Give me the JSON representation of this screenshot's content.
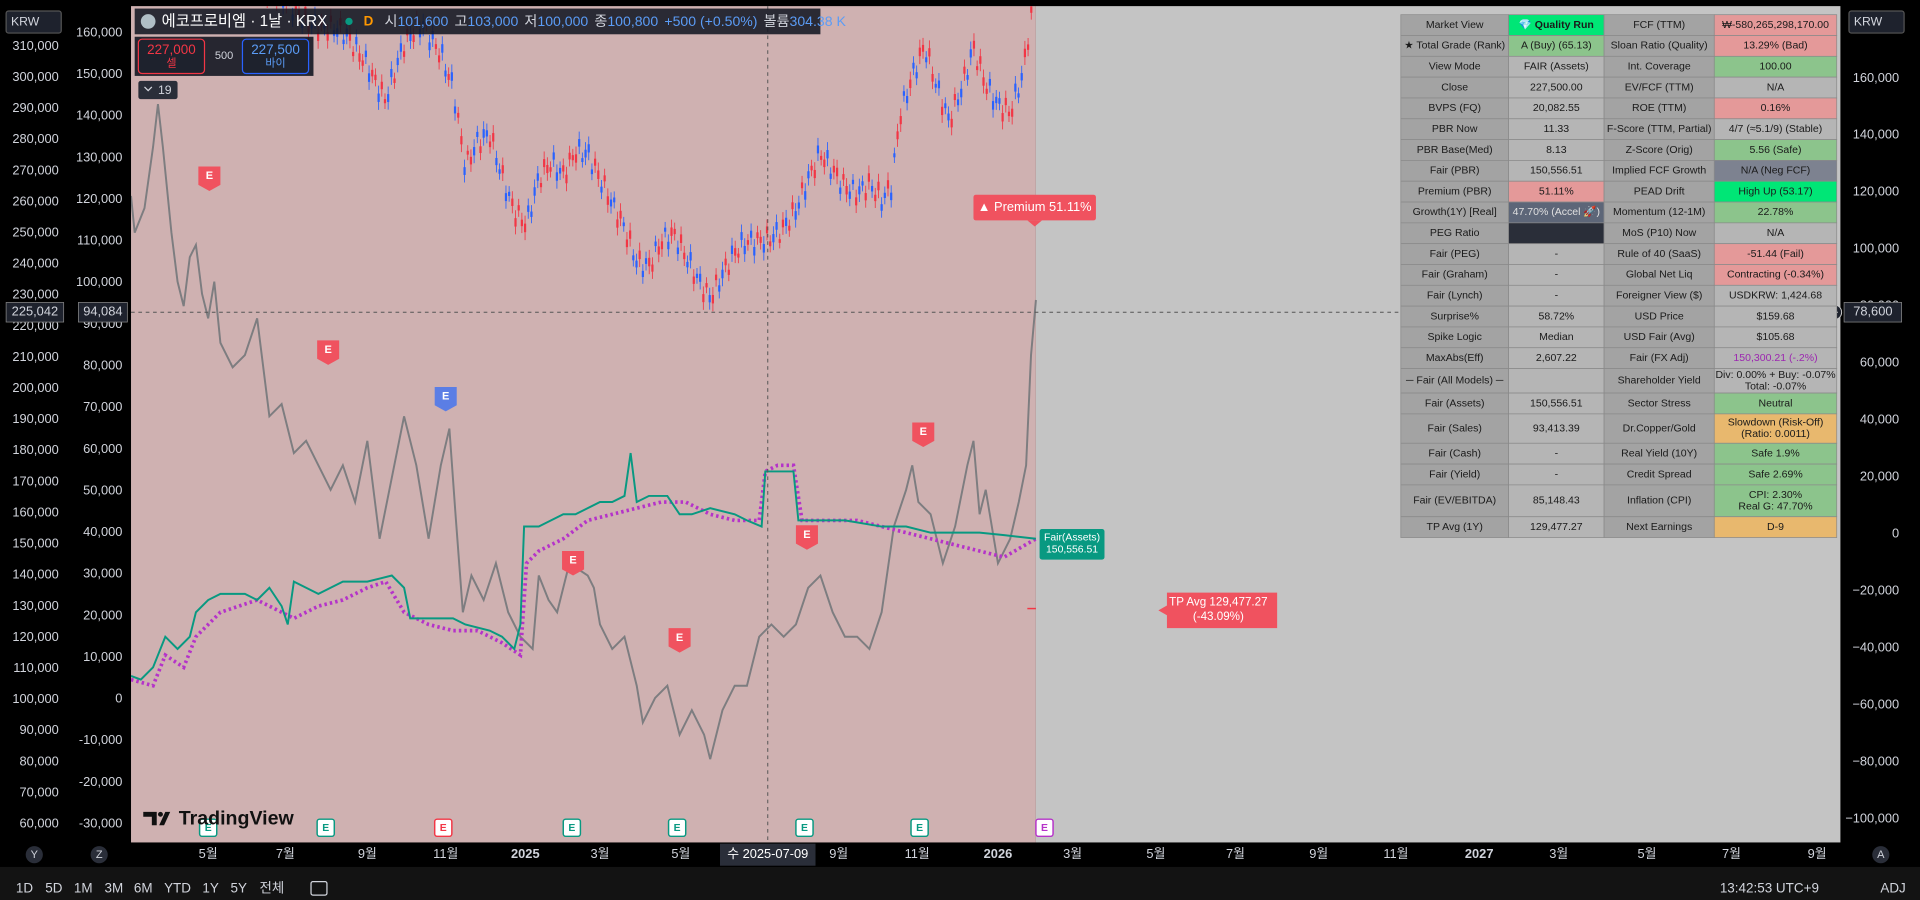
{
  "header": {
    "currency_left": "KRW",
    "currency_right": "KRW",
    "title": "에코프로비엠 · 1날 · KRX",
    "interval": "D",
    "ohlc": [
      {
        "label": "시",
        "value": "101,600"
      },
      {
        "label": "고",
        "value": "103,000"
      },
      {
        "label": "저",
        "value": "100,000"
      },
      {
        "label": "종",
        "value": "100,800"
      }
    ],
    "change": "+500 (+0.50%)",
    "volume_label": "볼륨",
    "volume": "304.38 K"
  },
  "order": {
    "sell_price": "227,000",
    "sell_label": "셀",
    "spread": "500",
    "buy_price": "227,500",
    "buy_label": "바이"
  },
  "indicator_count": "19",
  "axes": {
    "left_outer": [
      "310,000",
      "300,000",
      "290,000",
      "280,000",
      "270,000",
      "260,000",
      "250,000",
      "240,000",
      "230,000",
      "220,000",
      "210,000",
      "200,000",
      "190,000",
      "180,000",
      "170,000",
      "160,000",
      "150,000",
      "140,000",
      "130,000",
      "120,000",
      "110,000",
      "100,000",
      "90,000",
      "80,000",
      "70,000",
      "60,000"
    ],
    "left_inner": [
      "160,000",
      "150,000",
      "140,000",
      "130,000",
      "120,000",
      "110,000",
      "100,000",
      "90,000",
      "80,000",
      "70,000",
      "60,000",
      "50,000",
      "40,000",
      "30,000",
      "20,000",
      "10,000",
      "0",
      "-10,000",
      "-20,000",
      "-30,000"
    ],
    "right": [
      "160,000",
      "140,000",
      "120,000",
      "100,000",
      "80,000",
      "60,000",
      "40,000",
      "20,000",
      "0",
      "−20,000",
      "−40,000",
      "−60,000",
      "−80,000",
      "−100,000"
    ],
    "time": [
      "5월",
      "7월",
      "9월",
      "11월",
      "2025",
      "3월",
      "5월",
      "9월",
      "11월",
      "2026",
      "3월",
      "5월",
      "7월",
      "9월",
      "11월",
      "2027",
      "3월",
      "5월",
      "7월",
      "9월"
    ]
  },
  "crosshair": {
    "left_outer": "225,042",
    "left_inner": "94,084",
    "right": "78,600",
    "date": "수 2025-07-09"
  },
  "annotations": {
    "premium": "▲ Premium 51.11%",
    "fair": [
      "Fair(Assets)",
      "150,556.51"
    ],
    "tp": [
      "TP Avg 129,477.27",
      "(-43.09%)"
    ]
  },
  "earnings_marker": "E",
  "logo": "TradingView",
  "table": {
    "rows": [
      [
        "Market View",
        "💎 Quality Run",
        "FCF (TTM)",
        "₩-580,265,298,170.00"
      ],
      [
        "★ Total Grade (Rank)",
        "A (Buy) (65.13)",
        "Sloan Ratio (Quality)",
        "13.29% (Bad)"
      ],
      [
        "View Mode",
        "FAIR (Assets)",
        "Int. Coverage",
        "100.00"
      ],
      [
        "Close",
        "227,500.00",
        "EV/FCF (TTM)",
        "N/A"
      ],
      [
        "BVPS (FQ)",
        "20,082.55",
        "ROE (TTM)",
        "0.16%"
      ],
      [
        "PBR Now",
        "11.33",
        "F-Score (TTM, Partial)",
        "4/7 (≈5.1/9) (Stable)"
      ],
      [
        "PBR Base(Med)",
        "8.13",
        "Z-Score (Orig)",
        "5.56 (Safe)"
      ],
      [
        "Fair (PBR)",
        "150,556.51",
        "Implied FCF Growth",
        "N/A (Neg FCF)"
      ],
      [
        "Premium (PBR)",
        "51.11%",
        "PEAD Drift",
        "High Up (53.17)"
      ],
      [
        "Growth(1Y) [Real]",
        "47.70% (Accel 🚀)",
        "Momentum (12-1M)",
        "22.78%"
      ],
      [
        "PEG Ratio",
        null,
        "MoS (P10) Now",
        "N/A"
      ],
      [
        "Fair (PEG)",
        "-",
        "Rule of 40 (SaaS)",
        "-51.44 (Fail)"
      ],
      [
        "Fair (Graham)",
        "-",
        "Global Net Liq",
        "Contracting (-0.34%)"
      ],
      [
        "Fair (Lynch)",
        "-",
        "Foreigner View ($)",
        "USDKRW: 1,424.68"
      ],
      [
        "Surprise%",
        "58.72%",
        "USD Price",
        "$159.68"
      ],
      [
        "Spike Logic",
        "Median",
        "USD Fair (Avg)",
        "$105.68"
      ],
      [
        "MaxAbs(Eff)",
        "2,607.22",
        "Fair (FX Adj)",
        "150,300.21 (-.2%)"
      ],
      [
        "─ Fair (All Models) ─",
        null,
        "Shareholder Yield",
        [
          "Div: 0.00% + Buy: -0.07%",
          "Total: -0.07%"
        ]
      ],
      [
        "Fair (Assets)",
        "150,556.51",
        "Sector Stress",
        "Neutral"
      ],
      [
        "Fair (Sales)",
        "93,413.39",
        "Dr.Copper/Gold",
        [
          "Slowdown (Risk-Off)",
          "(Ratio: 0.0011)"
        ]
      ],
      [
        "Fair (Cash)",
        "-",
        "Real Yield (10Y)",
        "Safe 1.9%"
      ],
      [
        "Fair (Yield)",
        "-",
        "Credit Spread",
        "Safe 2.69%"
      ],
      [
        "Fair (EV/EBITDA)",
        "85,148.43",
        "Inflation (CPI)",
        [
          "CPI: 2.30%",
          "Real G: 47.70%"
        ]
      ],
      [
        "TP Avg (1Y)",
        "129,477.27",
        "Next Earnings",
        "D-9"
      ]
    ]
  },
  "bottom": {
    "scale_left": [
      "Y",
      "Z"
    ],
    "scale_right": "A",
    "ranges": [
      "1D",
      "5D",
      "1M",
      "3M",
      "6M",
      "YTD",
      "1Y",
      "5Y",
      "전체"
    ],
    "clock": "13:42:53 UTC+9",
    "adj": "ADJ"
  }
}
